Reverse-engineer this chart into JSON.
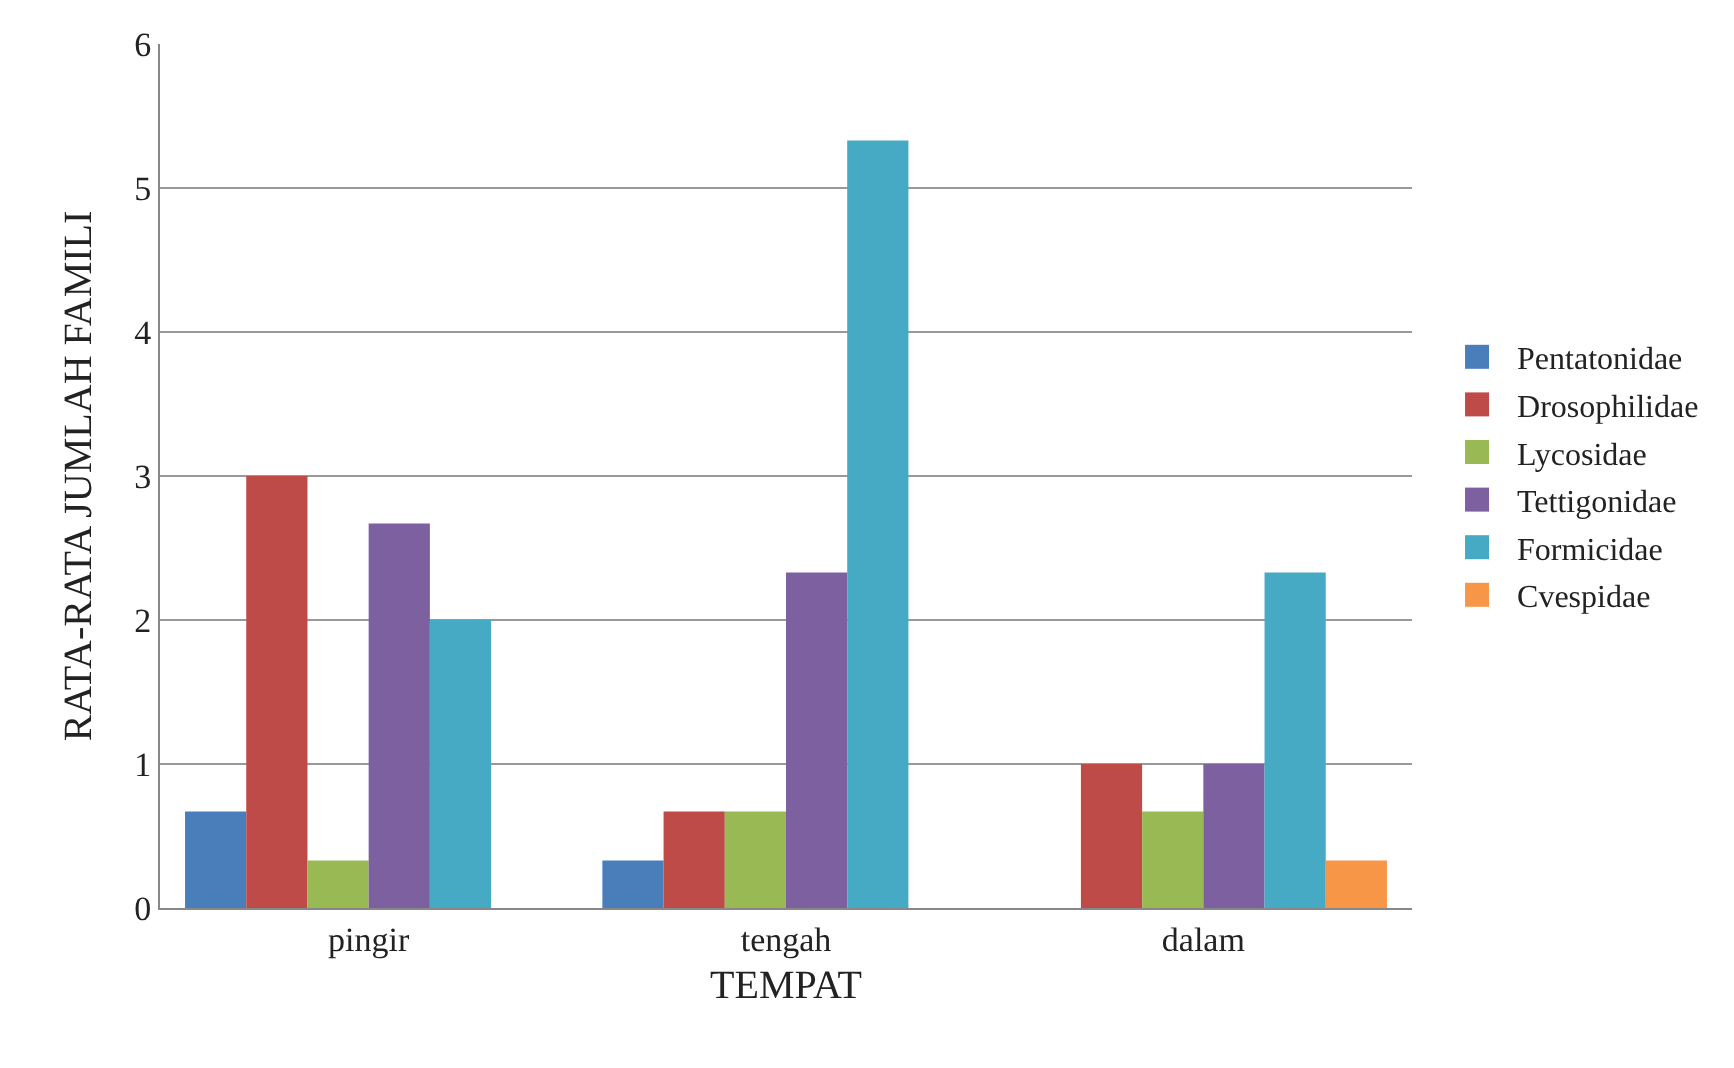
{
  "chart_data": {
    "type": "bar",
    "xlabel": "TEMPAT",
    "ylabel": "RATA-RATA JUMLAH FAMILI",
    "categories": [
      "pingir",
      "tengah",
      "dalam"
    ],
    "series": [
      {
        "name": "Pentatonidae",
        "color": "#4a7ebb",
        "values": [
          0.67,
          0.33,
          0
        ]
      },
      {
        "name": "Drosophilidae",
        "color": "#be4b48",
        "values": [
          3,
          0.67,
          1
        ]
      },
      {
        "name": "Lycosidae",
        "color": "#98b954",
        "values": [
          0.33,
          0.67,
          0.67
        ]
      },
      {
        "name": "Tettigonidae",
        "color": "#7d60a0",
        "values": [
          2.67,
          2.33,
          1
        ]
      },
      {
        "name": "Formicidae",
        "color": "#46aac5",
        "values": [
          2,
          5.33,
          2.33
        ]
      },
      {
        "name": "Cvespidae",
        "color": "#f79646",
        "values": [
          0,
          0,
          0.33
        ]
      }
    ],
    "ylim": [
      0,
      6
    ],
    "yticks": [
      0,
      1,
      2,
      3,
      4,
      5,
      6
    ],
    "grid": "y",
    "legend": "right"
  }
}
